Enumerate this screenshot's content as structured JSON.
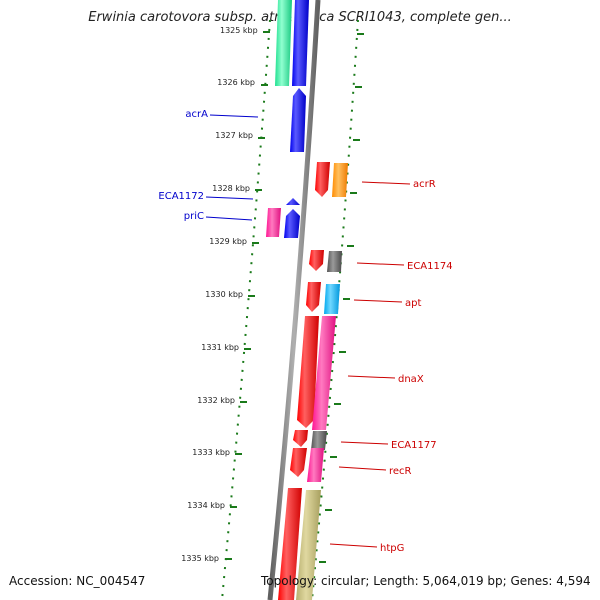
{
  "title": "Erwinia carotovora subsp. atroseptica SCRI1043, complete gen...",
  "footer": {
    "accession": "Accession: NC_004547",
    "summary": "Topology: circular; Length: 5,064,019 bp; Genes: 4,594"
  },
  "colors": {
    "backbone": "#808080",
    "ticks": "#1a7a1a",
    "forward_label": "#0000cc",
    "reverse_label": "#cc0000"
  },
  "scale": {
    "unit": "kbp",
    "top_partial_label": "1325 kbp",
    "labels": [
      "1326 kbp",
      "1327 kbp",
      "1328 kbp",
      "1329 kbp",
      "1330 kbp",
      "1331 kbp",
      "1332 kbp",
      "1333 kbp",
      "1334 kbp",
      "1335 kbp"
    ]
  },
  "forward_genes": [
    {
      "label": "",
      "color": "#30f0a0",
      "track": "outer"
    },
    {
      "label": "",
      "color": "#0000ee",
      "track": "inner"
    },
    {
      "label": "acrA",
      "color": "#0000ee",
      "track": "inner"
    },
    {
      "label": "ECA1172",
      "color": "#0000ee",
      "track": "inner"
    },
    {
      "label": "priC",
      "color": "#0000ee",
      "track": "inner"
    },
    {
      "label": "",
      "color": "#ff2c9c",
      "track": "outer"
    }
  ],
  "reverse_genes": [
    {
      "label": "acrR",
      "color": "#ff0000",
      "cog_color": "#ff8c00"
    },
    {
      "label": "ECA1174",
      "color": "#ff0000",
      "cog_color": "#606060"
    },
    {
      "label": "apt",
      "color": "#ff0000",
      "cog_color": "#00b0f0"
    },
    {
      "label": "dnaX",
      "color": "#ff0000",
      "cog_color": "#ff1493"
    },
    {
      "label": "ECA1177",
      "color": "#ff0000",
      "cog_color": "#606060"
    },
    {
      "label": "recR",
      "color": "#ff0000",
      "cog_color": "#ff1493"
    },
    {
      "label": "htpG",
      "color": "#ff0000",
      "cog_color": "#bdb76b"
    }
  ]
}
